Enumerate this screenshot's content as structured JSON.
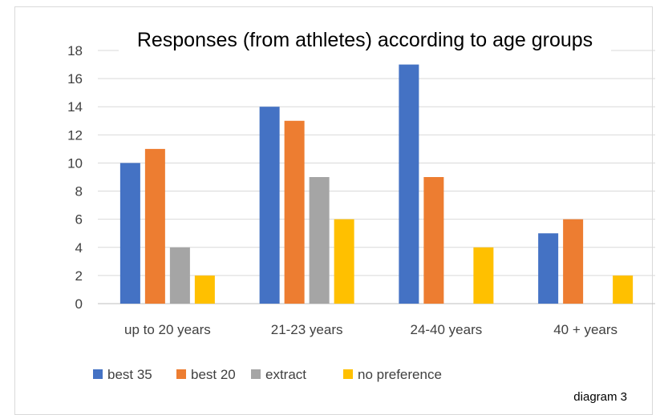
{
  "chart_data": {
    "type": "bar",
    "title": "Responses (from athletes) according to age groups",
    "xlabel": "",
    "ylabel": "",
    "categories": [
      "up to 20 years",
      "21-23 years",
      "24-40 years",
      "40 + years"
    ],
    "series": [
      {
        "name": "best 35",
        "color": "#4472C4",
        "values": [
          10,
          14,
          17,
          5
        ]
      },
      {
        "name": "best 20",
        "color": "#ED7D31",
        "values": [
          11,
          13,
          9,
          6
        ]
      },
      {
        "name": "extract",
        "color": "#A5A5A5",
        "values": [
          4,
          9,
          0,
          0
        ]
      },
      {
        "name": "no preference",
        "color": "#FFC000",
        "values": [
          2,
          6,
          4,
          2
        ]
      }
    ],
    "ylim": [
      0,
      18
    ],
    "yticks": [
      0,
      2,
      4,
      6,
      8,
      10,
      12,
      14,
      16,
      18
    ],
    "grid": true,
    "legend_position": "bottom-left"
  },
  "note": "diagram 3"
}
